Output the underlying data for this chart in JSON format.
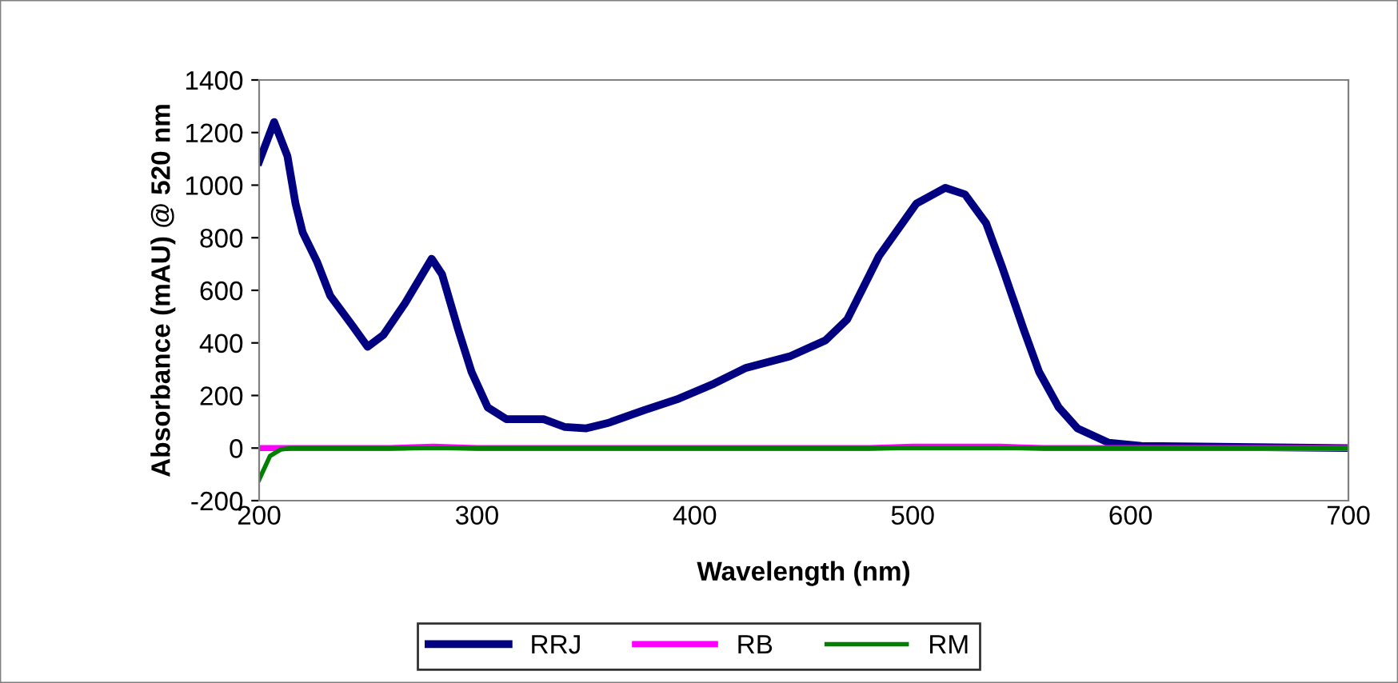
{
  "chart_data": {
    "type": "line",
    "xlabel": "Wavelength (nm)",
    "ylabel": "Absorbance (mAU) @ 520 nm",
    "xlim": [
      200,
      700
    ],
    "xticks": [
      200,
      300,
      400,
      500,
      600,
      700
    ],
    "ylim": [
      -200,
      1400
    ],
    "yticks": [
      -200,
      0,
      200,
      400,
      600,
      800,
      1000,
      1200,
      1400
    ],
    "grid": false,
    "legend": "bottom",
    "marker": "none",
    "line_style": "solid",
    "series": [
      {
        "name": "RRJ",
        "color": "#000080",
        "x": [
          200,
          206.9,
          213,
          216.7,
          220,
          226.5,
          232.6,
          242.4,
          249.8,
          257,
          266.9,
          279.2,
          284,
          291.4,
          297.5,
          304.9,
          313.5,
          330.6,
          340.4,
          350.2,
          360,
          377,
          391.7,
          408.8,
          423.5,
          444,
          460,
          470,
          484.5,
          501.7,
          515,
          524,
          533.7,
          541,
          551,
          558,
          567,
          575.6,
          590,
          605,
          700
        ],
        "values": [
          1090,
          1240,
          1110,
          930,
          820,
          710,
          580,
          470,
          385,
          430,
          550,
          720,
          660,
          450,
          290,
          155,
          110,
          110,
          80,
          75,
          95,
          145,
          185,
          245,
          305,
          350,
          410,
          490,
          730,
          930,
          990,
          965,
          855,
          690,
          450,
          290,
          155,
          75,
          20,
          8,
          0
        ]
      },
      {
        "name": "RB",
        "color": "#ff00ff",
        "x": [
          200,
          260,
          280,
          300,
          480,
          500,
          540,
          560,
          700
        ],
        "values": [
          0,
          0,
          5,
          0,
          0,
          5,
          5,
          0,
          0
        ]
      },
      {
        "name": "RM",
        "color": "#008000",
        "x": [
          200,
          205,
          210,
          215,
          700
        ],
        "values": [
          -120,
          -30,
          -5,
          0,
          0
        ]
      }
    ]
  }
}
